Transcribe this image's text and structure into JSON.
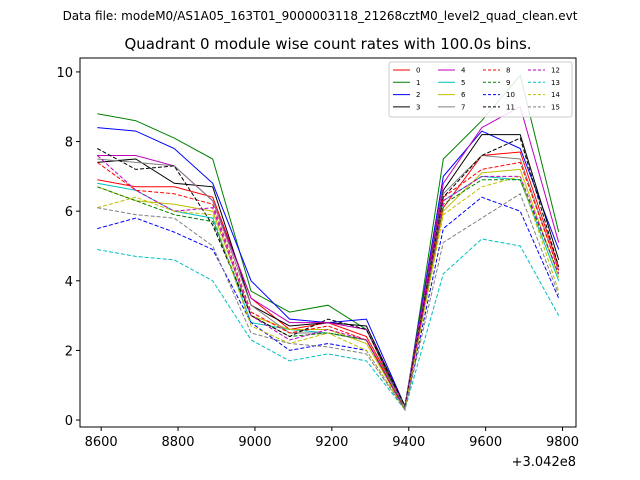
{
  "suptitle": "Data file: modeM0/AS1A05_163T01_9000003118_21268cztM0_level2_quad_clean.evt",
  "chart_data": {
    "type": "line",
    "title": "Quadrant 0 module wise count rates with 100.0s bins.",
    "xlabel": "",
    "ylabel": "",
    "x_offset_label": "+3.042e8",
    "x": [
      8590,
      8690,
      8790,
      8890,
      8990,
      9090,
      9190,
      9290,
      9390,
      9490,
      9590,
      9690,
      9790
    ],
    "xlim": [
      8545,
      9835
    ],
    "ylim": [
      -0.2,
      10.4
    ],
    "xticks": [
      8600,
      8800,
      9000,
      9200,
      9400,
      9600,
      9800
    ],
    "yticks": [
      0,
      2,
      4,
      6,
      8,
      10
    ],
    "grid": false,
    "legend": {
      "position": "top-right",
      "columns": 4
    },
    "series": [
      {
        "name": "0",
        "color": "#ff0000",
        "dash": false,
        "values": [
          6.9,
          6.7,
          6.7,
          6.4,
          3.5,
          2.6,
          2.8,
          2.4,
          0.4,
          6.1,
          7.6,
          7.7,
          4.4
        ]
      },
      {
        "name": "1",
        "color": "#008000",
        "dash": false,
        "values": [
          8.8,
          8.6,
          8.1,
          7.5,
          3.7,
          3.1,
          3.3,
          2.6,
          0.3,
          7.5,
          8.6,
          9.9,
          5.4
        ]
      },
      {
        "name": "2",
        "color": "#0000ff",
        "dash": false,
        "values": [
          8.4,
          8.3,
          7.8,
          6.8,
          4.0,
          2.9,
          2.8,
          2.9,
          0.4,
          7.0,
          8.3,
          7.8,
          4.9
        ]
      },
      {
        "name": "3",
        "color": "#000000",
        "dash": false,
        "values": [
          7.4,
          7.5,
          6.8,
          6.7,
          3.3,
          2.7,
          2.8,
          2.7,
          0.4,
          6.6,
          8.2,
          8.2,
          4.6
        ]
      },
      {
        "name": "4",
        "color": "#bf00bf",
        "dash": false,
        "values": [
          7.6,
          7.6,
          7.3,
          6.3,
          3.5,
          2.8,
          2.8,
          2.6,
          0.4,
          6.8,
          8.4,
          9.0,
          5.1
        ]
      },
      {
        "name": "5",
        "color": "#00bfbf",
        "dash": false,
        "values": [
          6.8,
          6.6,
          6.0,
          5.8,
          2.8,
          2.6,
          2.5,
          2.3,
          0.3,
          6.3,
          7.0,
          6.9,
          4.0
        ]
      },
      {
        "name": "6",
        "color": "#bfbf00",
        "dash": false,
        "values": [
          6.7,
          6.3,
          6.2,
          6.0,
          3.0,
          2.6,
          2.6,
          2.2,
          0.3,
          6.0,
          7.1,
          7.2,
          4.1
        ]
      },
      {
        "name": "7",
        "color": "#808080",
        "dash": false,
        "values": [
          7.5,
          7.4,
          7.3,
          6.3,
          3.3,
          2.5,
          2.5,
          2.3,
          0.4,
          6.5,
          7.6,
          7.5,
          4.3
        ]
      },
      {
        "name": "8",
        "color": "#ff0000",
        "dash": true,
        "values": [
          7.4,
          6.6,
          6.5,
          6.2,
          3.1,
          2.5,
          2.7,
          2.3,
          0.3,
          6.4,
          7.2,
          7.4,
          4.3
        ]
      },
      {
        "name": "9",
        "color": "#008000",
        "dash": true,
        "values": [
          6.7,
          6.3,
          5.9,
          5.7,
          3.0,
          2.4,
          2.5,
          2.3,
          0.3,
          6.2,
          6.9,
          6.9,
          4.2
        ]
      },
      {
        "name": "10",
        "color": "#0000ff",
        "dash": true,
        "values": [
          5.5,
          5.8,
          5.4,
          4.9,
          2.8,
          2.0,
          2.2,
          2.0,
          0.3,
          5.5,
          6.4,
          6.0,
          3.5
        ]
      },
      {
        "name": "11",
        "color": "#000000",
        "dash": true,
        "values": [
          7.8,
          7.2,
          7.3,
          5.6,
          3.0,
          2.4,
          2.9,
          2.6,
          0.4,
          6.4,
          7.6,
          8.1,
          4.4
        ]
      },
      {
        "name": "12",
        "color": "#bf00bf",
        "dash": true,
        "values": [
          7.6,
          6.6,
          6.0,
          6.1,
          3.0,
          2.3,
          2.6,
          2.3,
          0.3,
          6.3,
          7.0,
          7.0,
          4.2
        ]
      },
      {
        "name": "13",
        "color": "#00bfbf",
        "dash": true,
        "values": [
          4.9,
          4.7,
          4.6,
          4.0,
          2.3,
          1.7,
          1.9,
          1.7,
          0.3,
          4.2,
          5.2,
          5.0,
          3.0
        ]
      },
      {
        "name": "14",
        "color": "#bfbf00",
        "dash": true,
        "values": [
          6.1,
          6.4,
          6.0,
          5.9,
          2.7,
          2.2,
          2.5,
          2.0,
          0.3,
          5.9,
          6.7,
          7.0,
          3.7
        ]
      },
      {
        "name": "15",
        "color": "#808080",
        "dash": true,
        "values": [
          6.1,
          5.9,
          5.8,
          5.0,
          2.5,
          2.2,
          2.1,
          1.9,
          0.3,
          5.1,
          5.8,
          6.5,
          3.6
        ]
      }
    ]
  }
}
